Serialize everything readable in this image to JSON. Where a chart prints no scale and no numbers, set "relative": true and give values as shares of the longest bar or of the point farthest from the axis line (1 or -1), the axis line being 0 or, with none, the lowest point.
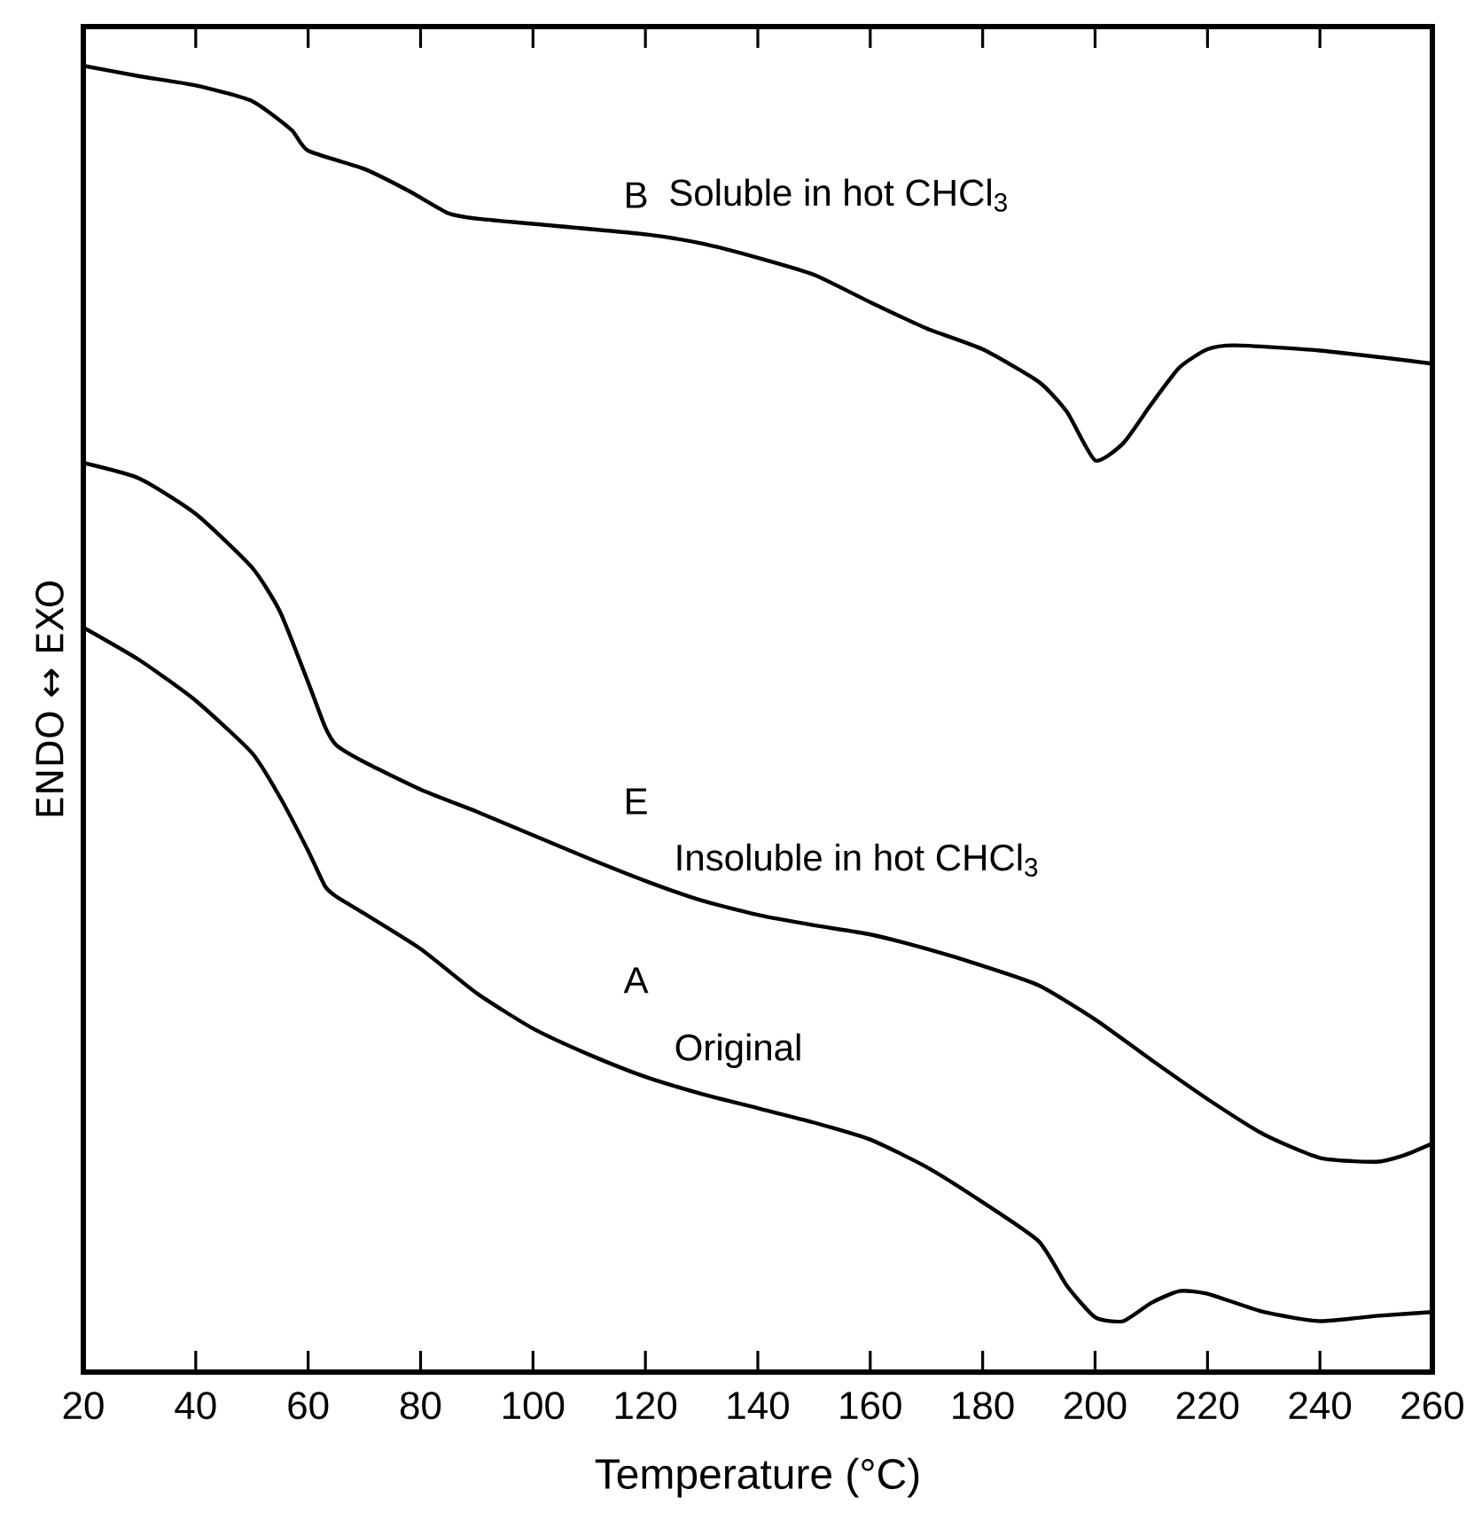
{
  "chart_data": {
    "type": "line",
    "relative": true,
    "xlabel": "Temperature (°C)",
    "ylabel": "ENDO ↔ EXO",
    "xlim": [
      20,
      260
    ],
    "xticks": [
      20,
      40,
      60,
      80,
      100,
      120,
      140,
      160,
      180,
      200,
      220,
      240,
      260
    ],
    "grid": false,
    "marker": "none",
    "line_style": "solid",
    "series": [
      {
        "color": "#000000",
        "x": [
          20,
          30,
          40,
          50,
          57,
          60,
          70,
          78,
          85,
          90,
          100,
          120,
          130,
          140,
          150,
          160,
          170,
          180,
          190,
          195,
          200,
          205,
          210,
          215,
          220,
          225,
          240,
          260
        ],
        "values": [
          1.0,
          0.992,
          0.985,
          0.973,
          0.951,
          0.935,
          0.921,
          0.904,
          0.887,
          0.883,
          0.879,
          0.871,
          0.864,
          0.853,
          0.84,
          0.819,
          0.799,
          0.783,
          0.758,
          0.735,
          0.698,
          0.711,
          0.741,
          0.769,
          0.783,
          0.786,
          0.782,
          0.772
        ]
      },
      {
        "color": "#000000",
        "x": [
          20,
          30,
          40,
          50,
          55,
          60,
          63,
          65,
          70,
          80,
          90,
          100,
          110,
          120,
          130,
          140,
          150,
          160,
          170,
          180,
          190,
          200,
          210,
          220,
          230,
          240,
          250,
          255,
          260
        ],
        "values": [
          0.696,
          0.684,
          0.657,
          0.616,
          0.582,
          0.528,
          0.494,
          0.48,
          0.467,
          0.446,
          0.429,
          0.411,
          0.393,
          0.376,
          0.361,
          0.35,
          0.342,
          0.335,
          0.324,
          0.311,
          0.296,
          0.27,
          0.239,
          0.209,
          0.182,
          0.164,
          0.161,
          0.166,
          0.175
        ]
      },
      {
        "color": "#000000",
        "x": [
          20,
          30,
          40,
          50,
          55,
          60,
          63,
          65,
          70,
          80,
          90,
          100,
          110,
          120,
          130,
          140,
          150,
          160,
          170,
          180,
          190,
          195,
          200,
          205,
          210,
          215,
          220,
          230,
          240,
          250,
          260
        ],
        "values": [
          0.57,
          0.545,
          0.514,
          0.474,
          0.44,
          0.399,
          0.372,
          0.364,
          0.351,
          0.324,
          0.29,
          0.263,
          0.243,
          0.226,
          0.213,
          0.202,
          0.191,
          0.178,
          0.157,
          0.13,
          0.1,
          0.066,
          0.042,
          0.039,
          0.053,
          0.062,
          0.06,
          0.046,
          0.039,
          0.043,
          0.046
        ]
      }
    ],
    "annotations": [
      "B",
      "Soluble in hot CHCl$_{3}$",
      "E",
      "Insoluble in hot CHCl$_{3}$",
      "A",
      "Original"
    ]
  }
}
